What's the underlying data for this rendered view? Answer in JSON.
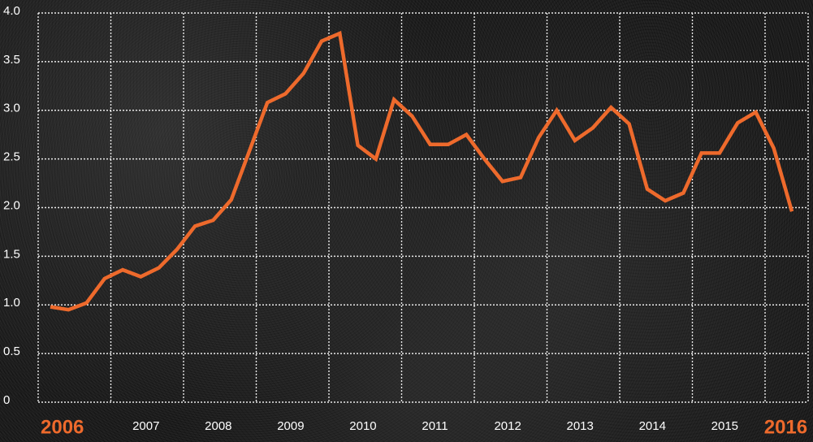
{
  "chart_data": {
    "type": "line",
    "categories": [
      "2006",
      null,
      null,
      null,
      "2007",
      null,
      null,
      null,
      "2008",
      null,
      null,
      null,
      "2009",
      null,
      null,
      null,
      "2010",
      null,
      null,
      null,
      "2011",
      null,
      null,
      null,
      "2012",
      null,
      null,
      null,
      "2013",
      null,
      null,
      null,
      "2014",
      null,
      null,
      null,
      "2015",
      null,
      null,
      null,
      "2016",
      null
    ],
    "values": [
      0.98,
      0.95,
      1.02,
      1.27,
      1.36,
      1.29,
      1.38,
      1.57,
      1.81,
      1.87,
      2.08,
      2.58,
      3.08,
      3.17,
      3.38,
      3.71,
      3.79,
      2.64,
      2.5,
      3.11,
      2.94,
      2.65,
      2.65,
      2.75,
      2.5,
      2.27,
      2.31,
      2.72,
      3.0,
      2.69,
      2.82,
      3.03,
      2.86,
      2.19,
      2.07,
      2.15,
      2.56,
      2.56,
      2.87,
      2.98,
      2.61,
      1.96
    ],
    "color": "#ee6a2c",
    "ylim": [
      0,
      4
    ],
    "yticks": [
      0,
      0.5,
      {
        "value": 1,
        "label": "1.0"
      },
      1.5,
      {
        "value": 2,
        "label": "2.0"
      },
      2.5,
      {
        "value": 3,
        "label": "3.0"
      },
      3.5,
      {
        "value": 4,
        "label": "4.0"
      }
    ],
    "grid": true
  }
}
